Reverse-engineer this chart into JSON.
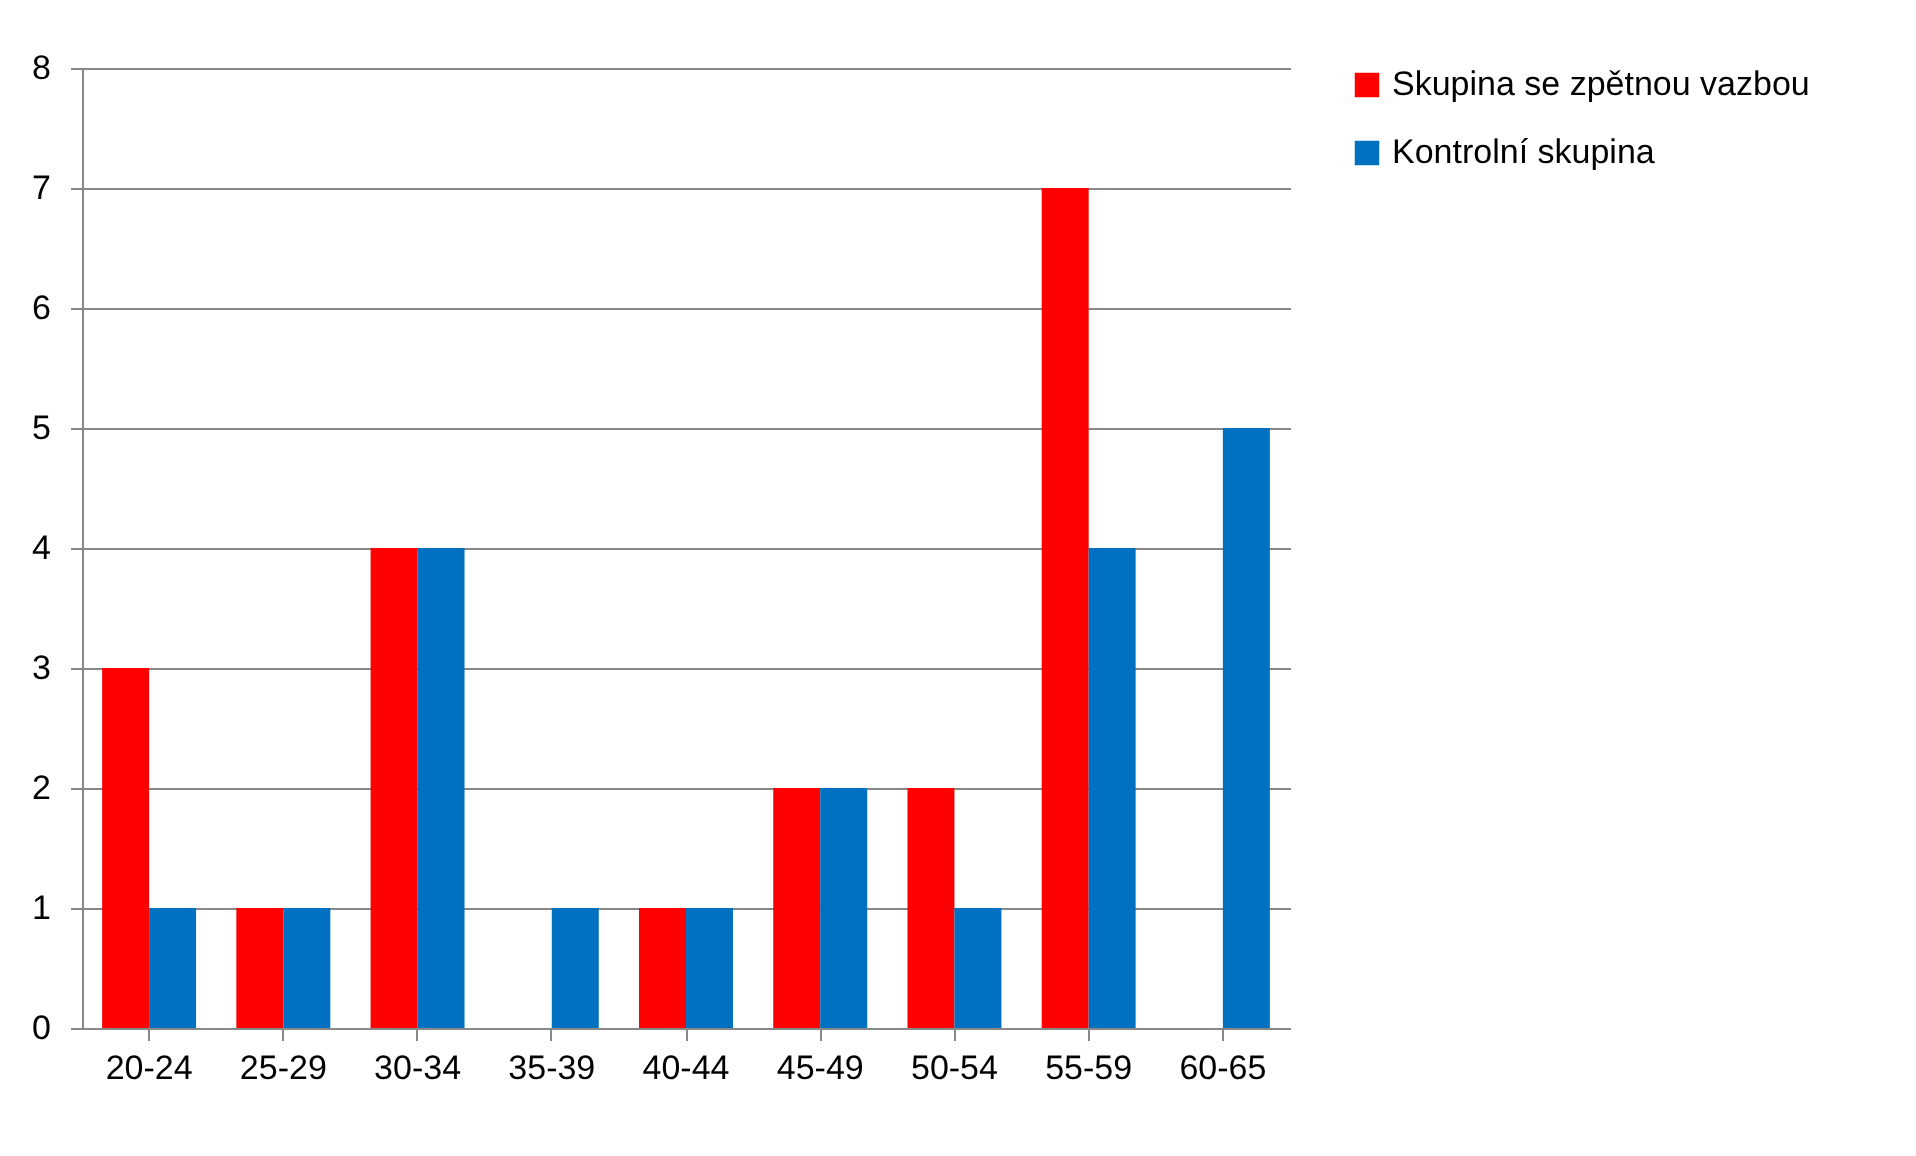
{
  "chart_data": {
    "type": "bar",
    "categories": [
      "20-24",
      "25-29",
      "30-34",
      "35-39",
      "40-44",
      "45-49",
      "50-54",
      "55-59",
      "60-65"
    ],
    "series": [
      {
        "name": "Skupina se zpětnou vazbou",
        "color": "#ff0000",
        "values": [
          3,
          1,
          4,
          0,
          1,
          2,
          2,
          7,
          0
        ]
      },
      {
        "name": "Kontrolní skupina",
        "color": "#0070c0",
        "values": [
          1,
          1,
          4,
          1,
          1,
          2,
          1,
          4,
          5
        ]
      }
    ],
    "ylim": [
      0,
      8
    ],
    "yticks": [
      0,
      1,
      2,
      3,
      4,
      5,
      6,
      7,
      8
    ],
    "grid": "y",
    "legend": "right"
  }
}
